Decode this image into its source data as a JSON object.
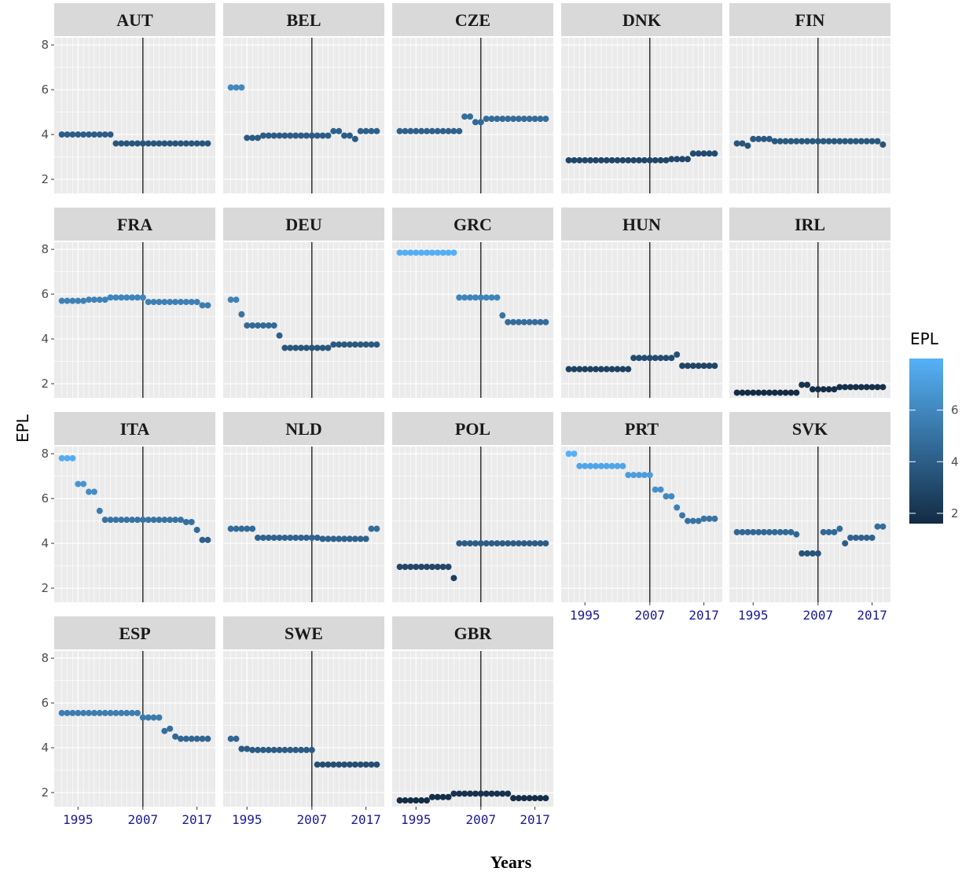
{
  "chart_data": {
    "type": "scatter",
    "xlabel": "Years",
    "ylabel": "EPL",
    "legend_title": "EPL",
    "x": [
      1992,
      1993,
      1994,
      1995,
      1996,
      1997,
      1998,
      1999,
      2000,
      2001,
      2002,
      2003,
      2004,
      2005,
      2006,
      2007,
      2008,
      2009,
      2010,
      2011,
      2012,
      2013,
      2014,
      2015,
      2016,
      2017,
      2018,
      2019
    ],
    "xlim": [
      1990.6,
      2020.4
    ],
    "xticks": [
      1995,
      2007,
      2017
    ],
    "ylim": [
      1.37,
      8.32
    ],
    "yticks": [
      2,
      4,
      6,
      8
    ],
    "vline": 2007,
    "grid": true,
    "color_scale": {
      "low": "#132B43",
      "high": "#56B1F7"
    },
    "legend_ticks": [
      2,
      4,
      6
    ],
    "facets": [
      {
        "title": "AUT",
        "values": [
          4.0,
          4.0,
          4.0,
          4.0,
          4.0,
          4.0,
          4.0,
          4.0,
          4.0,
          4.0,
          3.6,
          3.6,
          3.6,
          3.6,
          3.6,
          3.6,
          3.6,
          3.6,
          3.6,
          3.6,
          3.6,
          3.6,
          3.6,
          3.6,
          3.6,
          3.6,
          3.6,
          3.6
        ]
      },
      {
        "title": "BEL",
        "values": [
          6.1,
          6.1,
          6.1,
          3.85,
          3.85,
          3.85,
          3.95,
          3.95,
          3.95,
          3.95,
          3.95,
          3.95,
          3.95,
          3.95,
          3.95,
          3.95,
          3.95,
          3.95,
          3.95,
          4.15,
          4.15,
          3.95,
          3.95,
          3.8,
          4.15,
          4.15,
          4.15,
          4.15
        ]
      },
      {
        "title": "CZE",
        "values": [
          4.15,
          4.15,
          4.15,
          4.15,
          4.15,
          4.15,
          4.15,
          4.15,
          4.15,
          4.15,
          4.15,
          4.15,
          4.8,
          4.8,
          4.55,
          4.55,
          4.7,
          4.7,
          4.7,
          4.7,
          4.7,
          4.7,
          4.7,
          4.7,
          4.7,
          4.7,
          4.7,
          4.7
        ]
      },
      {
        "title": "DNK",
        "values": [
          2.85,
          2.85,
          2.85,
          2.85,
          2.85,
          2.85,
          2.85,
          2.85,
          2.85,
          2.85,
          2.85,
          2.85,
          2.85,
          2.85,
          2.85,
          2.85,
          2.85,
          2.85,
          2.85,
          2.9,
          2.9,
          2.9,
          2.9,
          3.15,
          3.15,
          3.15,
          3.15,
          3.15
        ]
      },
      {
        "title": "FIN",
        "values": [
          3.6,
          3.6,
          3.5,
          3.8,
          3.8,
          3.8,
          3.8,
          3.7,
          3.7,
          3.7,
          3.7,
          3.7,
          3.7,
          3.7,
          3.7,
          3.7,
          3.7,
          3.7,
          3.7,
          3.7,
          3.7,
          3.7,
          3.7,
          3.7,
          3.7,
          3.7,
          3.7,
          3.55
        ]
      },
      {
        "title": "FRA",
        "values": [
          5.7,
          5.7,
          5.7,
          5.7,
          5.7,
          5.75,
          5.75,
          5.75,
          5.75,
          5.85,
          5.85,
          5.85,
          5.85,
          5.85,
          5.85,
          5.85,
          5.65,
          5.65,
          5.65,
          5.65,
          5.65,
          5.65,
          5.65,
          5.65,
          5.65,
          5.65,
          5.5,
          5.5
        ]
      },
      {
        "title": "DEU",
        "values": [
          5.75,
          5.75,
          5.1,
          4.6,
          4.6,
          4.6,
          4.6,
          4.6,
          4.6,
          4.15,
          3.6,
          3.6,
          3.6,
          3.6,
          3.6,
          3.6,
          3.6,
          3.6,
          3.6,
          3.75,
          3.75,
          3.75,
          3.75,
          3.75,
          3.75,
          3.75,
          3.75,
          3.75
        ]
      },
      {
        "title": "GRC",
        "values": [
          7.85,
          7.85,
          7.85,
          7.85,
          7.85,
          7.85,
          7.85,
          7.85,
          7.85,
          7.85,
          7.85,
          5.85,
          5.85,
          5.85,
          5.85,
          5.85,
          5.85,
          5.85,
          5.85,
          5.05,
          4.75,
          4.75,
          4.75,
          4.75,
          4.75,
          4.75,
          4.75,
          4.75
        ]
      },
      {
        "title": "HUN",
        "values": [
          2.65,
          2.65,
          2.65,
          2.65,
          2.65,
          2.65,
          2.65,
          2.65,
          2.65,
          2.65,
          2.65,
          2.65,
          3.15,
          3.15,
          3.15,
          3.15,
          3.15,
          3.15,
          3.15,
          3.15,
          3.3,
          2.8,
          2.8,
          2.8,
          2.8,
          2.8,
          2.8,
          2.8
        ]
      },
      {
        "title": "IRL",
        "values": [
          1.6,
          1.6,
          1.6,
          1.6,
          1.6,
          1.6,
          1.6,
          1.6,
          1.6,
          1.6,
          1.6,
          1.6,
          1.95,
          1.95,
          1.75,
          1.75,
          1.75,
          1.75,
          1.75,
          1.85,
          1.85,
          1.85,
          1.85,
          1.85,
          1.85,
          1.85,
          1.85,
          1.85
        ]
      },
      {
        "title": "ITA",
        "values": [
          7.8,
          7.8,
          7.8,
          6.65,
          6.65,
          6.3,
          6.3,
          5.45,
          5.05,
          5.05,
          5.05,
          5.05,
          5.05,
          5.05,
          5.05,
          5.05,
          5.05,
          5.05,
          5.05,
          5.05,
          5.05,
          5.05,
          5.05,
          4.95,
          4.95,
          4.6,
          4.15,
          4.15
        ]
      },
      {
        "title": "NLD",
        "values": [
          4.65,
          4.65,
          4.65,
          4.65,
          4.65,
          4.25,
          4.25,
          4.25,
          4.25,
          4.25,
          4.25,
          4.25,
          4.25,
          4.25,
          4.25,
          4.25,
          4.25,
          4.2,
          4.2,
          4.2,
          4.2,
          4.2,
          4.2,
          4.2,
          4.2,
          4.2,
          4.65,
          4.65
        ]
      },
      {
        "title": "POL",
        "values": [
          2.95,
          2.95,
          2.95,
          2.95,
          2.95,
          2.95,
          2.95,
          2.95,
          2.95,
          2.95,
          2.45,
          4.0,
          4.0,
          4.0,
          4.0,
          4.0,
          4.0,
          4.0,
          4.0,
          4.0,
          4.0,
          4.0,
          4.0,
          4.0,
          4.0,
          4.0,
          4.0,
          4.0
        ]
      },
      {
        "title": "PRT",
        "values": [
          8.0,
          8.0,
          7.45,
          7.45,
          7.45,
          7.45,
          7.45,
          7.45,
          7.45,
          7.45,
          7.45,
          7.05,
          7.05,
          7.05,
          7.05,
          7.05,
          6.4,
          6.4,
          6.1,
          6.1,
          5.6,
          5.25,
          5.0,
          5.0,
          5.0,
          5.1,
          5.1,
          5.1
        ]
      },
      {
        "title": "SVK",
        "values": [
          4.5,
          4.5,
          4.5,
          4.5,
          4.5,
          4.5,
          4.5,
          4.5,
          4.5,
          4.5,
          4.5,
          4.4,
          3.55,
          3.55,
          3.55,
          3.55,
          4.5,
          4.5,
          4.5,
          4.65,
          4.0,
          4.25,
          4.25,
          4.25,
          4.25,
          4.25,
          4.75,
          4.75
        ]
      },
      {
        "title": "ESP",
        "values": [
          5.55,
          5.55,
          5.55,
          5.55,
          5.55,
          5.55,
          5.55,
          5.55,
          5.55,
          5.55,
          5.55,
          5.55,
          5.55,
          5.55,
          5.55,
          5.35,
          5.35,
          5.35,
          5.35,
          4.75,
          4.85,
          4.5,
          4.4,
          4.4,
          4.4,
          4.4,
          4.4,
          4.4
        ]
      },
      {
        "title": "SWE",
        "values": [
          4.4,
          4.4,
          3.95,
          3.95,
          3.9,
          3.9,
          3.9,
          3.9,
          3.9,
          3.9,
          3.9,
          3.9,
          3.9,
          3.9,
          3.9,
          3.9,
          3.25,
          3.25,
          3.25,
          3.25,
          3.25,
          3.25,
          3.25,
          3.25,
          3.25,
          3.25,
          3.25,
          3.25
        ]
      },
      {
        "title": "GBR",
        "values": [
          1.65,
          1.65,
          1.65,
          1.65,
          1.65,
          1.65,
          1.8,
          1.8,
          1.8,
          1.8,
          1.95,
          1.95,
          1.95,
          1.95,
          1.95,
          1.95,
          1.95,
          1.95,
          1.95,
          1.95,
          1.95,
          1.75,
          1.75,
          1.75,
          1.75,
          1.75,
          1.75,
          1.75
        ]
      }
    ]
  }
}
